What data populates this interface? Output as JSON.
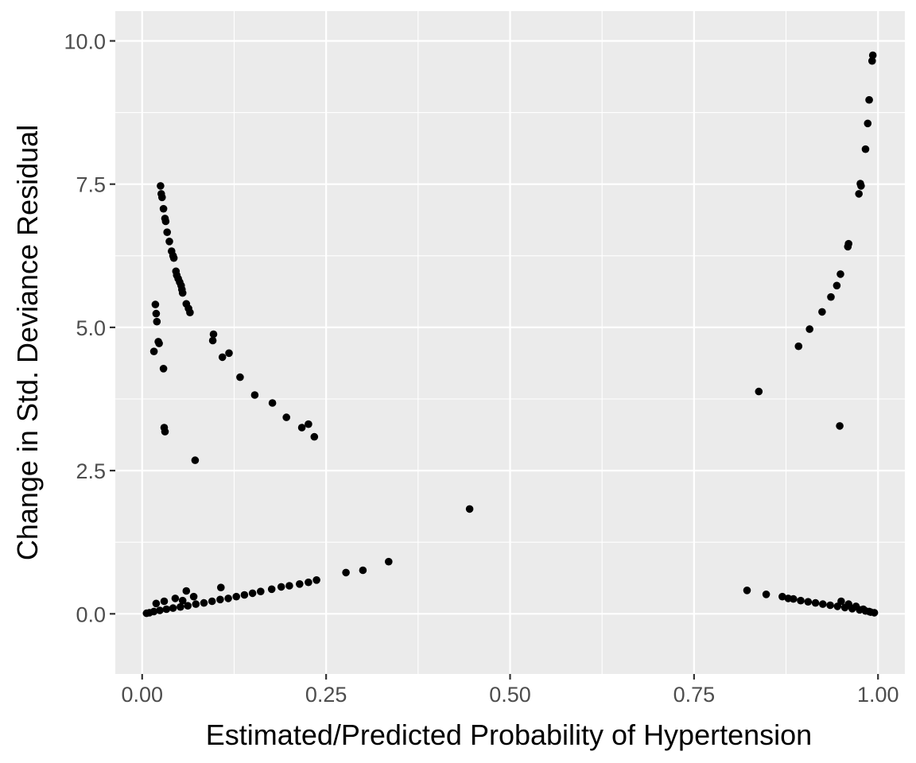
{
  "chart_data": {
    "type": "scatter",
    "title": "",
    "xlabel": "Estimated/Predicted Probability of Hypertension",
    "ylabel": "Change in Std. Deviance Residual",
    "xlim": [
      -0.0365,
      1.0365
    ],
    "ylim": [
      -1.05,
      10.52
    ],
    "x_ticks": [
      0.0,
      0.25,
      0.5,
      0.75,
      1.0
    ],
    "x_tick_labels": [
      "0.00",
      "0.25",
      "0.50",
      "0.75",
      "1.00"
    ],
    "y_ticks": [
      0.0,
      2.5,
      5.0,
      7.5,
      10.0
    ],
    "y_tick_labels": [
      "0.0",
      "2.5",
      "5.0",
      "7.5",
      "10.0"
    ],
    "grid": true,
    "legend": "none",
    "colors": {
      "panel": "#ebebeb",
      "grid": "#ffffff",
      "point": "#000000"
    },
    "series": [
      {
        "points": [
          [
            0.025,
            7.47
          ],
          [
            0.026,
            7.33
          ],
          [
            0.027,
            7.27
          ],
          [
            0.029,
            7.07
          ],
          [
            0.031,
            6.9
          ],
          [
            0.032,
            6.85
          ],
          [
            0.034,
            6.66
          ],
          [
            0.037,
            6.5
          ],
          [
            0.04,
            6.33
          ],
          [
            0.042,
            6.25
          ],
          [
            0.043,
            6.21
          ],
          [
            0.046,
            5.98
          ],
          [
            0.047,
            5.91
          ],
          [
            0.049,
            5.85
          ],
          [
            0.051,
            5.79
          ],
          [
            0.053,
            5.73
          ],
          [
            0.054,
            5.66
          ],
          [
            0.055,
            5.6
          ],
          [
            0.06,
            5.41
          ],
          [
            0.063,
            5.33
          ],
          [
            0.065,
            5.26
          ],
          [
            0.096,
            4.77
          ],
          [
            0.097,
            4.88
          ],
          [
            0.109,
            4.48
          ],
          [
            0.118,
            4.55
          ],
          [
            0.133,
            4.13
          ],
          [
            0.153,
            3.82
          ],
          [
            0.177,
            3.68
          ],
          [
            0.196,
            3.43
          ],
          [
            0.217,
            3.25
          ],
          [
            0.226,
            3.31
          ],
          [
            0.234,
            3.09
          ],
          [
            0.018,
            5.4
          ],
          [
            0.019,
            5.24
          ],
          [
            0.02,
            5.1
          ],
          [
            0.022,
            4.75
          ],
          [
            0.023,
            4.72
          ],
          [
            0.016,
            4.58
          ],
          [
            0.029,
            4.28
          ],
          [
            0.03,
            3.25
          ],
          [
            0.031,
            3.18
          ],
          [
            0.072,
            2.68
          ],
          [
            0.445,
            1.83
          ],
          [
            0.335,
            0.91
          ],
          [
            0.3,
            0.76
          ],
          [
            0.277,
            0.72
          ],
          [
            0.237,
            0.59
          ],
          [
            0.226,
            0.55
          ],
          [
            0.214,
            0.52
          ],
          [
            0.2,
            0.49
          ],
          [
            0.189,
            0.47
          ],
          [
            0.176,
            0.43
          ],
          [
            0.161,
            0.39
          ],
          [
            0.15,
            0.36
          ],
          [
            0.139,
            0.33
          ],
          [
            0.128,
            0.3
          ],
          [
            0.117,
            0.27
          ],
          [
            0.106,
            0.25
          ],
          [
            0.095,
            0.22
          ],
          [
            0.084,
            0.19
          ],
          [
            0.073,
            0.17
          ],
          [
            0.062,
            0.14
          ],
          [
            0.052,
            0.12
          ],
          [
            0.042,
            0.1
          ],
          [
            0.033,
            0.08
          ],
          [
            0.024,
            0.06
          ],
          [
            0.016,
            0.04
          ],
          [
            0.01,
            0.02
          ],
          [
            0.006,
            0.01
          ],
          [
            0.06,
            0.4
          ],
          [
            0.107,
            0.46
          ],
          [
            0.045,
            0.27
          ],
          [
            0.03,
            0.22
          ],
          [
            0.019,
            0.18
          ],
          [
            0.07,
            0.3
          ],
          [
            0.055,
            0.23
          ],
          [
            0.993,
            9.75
          ],
          [
            0.992,
            9.65
          ],
          [
            0.988,
            8.97
          ],
          [
            0.986,
            8.56
          ],
          [
            0.983,
            8.11
          ],
          [
            0.976,
            7.51
          ],
          [
            0.977,
            7.47
          ],
          [
            0.974,
            7.33
          ],
          [
            0.96,
            6.46
          ],
          [
            0.959,
            6.41
          ],
          [
            0.949,
            5.93
          ],
          [
            0.944,
            5.73
          ],
          [
            0.936,
            5.53
          ],
          [
            0.924,
            5.27
          ],
          [
            0.907,
            4.97
          ],
          [
            0.892,
            4.67
          ],
          [
            0.838,
            3.88
          ],
          [
            0.948,
            3.28
          ],
          [
            0.822,
            0.41
          ],
          [
            0.848,
            0.34
          ],
          [
            0.87,
            0.3
          ],
          [
            0.878,
            0.27
          ],
          [
            0.885,
            0.26
          ],
          [
            0.895,
            0.23
          ],
          [
            0.905,
            0.21
          ],
          [
            0.915,
            0.19
          ],
          [
            0.925,
            0.17
          ],
          [
            0.935,
            0.15
          ],
          [
            0.945,
            0.13
          ],
          [
            0.955,
            0.11
          ],
          [
            0.965,
            0.09
          ],
          [
            0.975,
            0.07
          ],
          [
            0.983,
            0.05
          ],
          [
            0.99,
            0.03
          ],
          [
            0.995,
            0.02
          ],
          [
            0.95,
            0.22
          ],
          [
            0.96,
            0.17
          ],
          [
            0.97,
            0.13
          ],
          [
            0.98,
            0.08
          ],
          [
            0.988,
            0.04
          ]
        ]
      }
    ]
  }
}
